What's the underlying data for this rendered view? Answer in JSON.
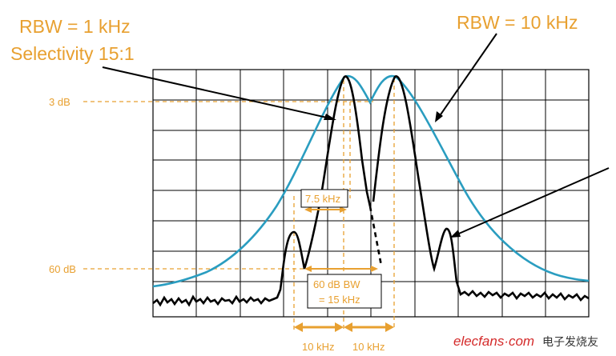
{
  "annotations": {
    "rbw_1k_line1": "RBW = 1 kHz",
    "rbw_1k_line2": "Selectivity 15:1",
    "rbw_10k": "RBW = 10 kHz",
    "level_3db": "3 dB",
    "level_60db": "60 dB",
    "bw_7_5": "7.5 kHz",
    "bw_60db_line1": "60 dB BW",
    "bw_60db_line2": "= 15 kHz",
    "spacing_left": "10 kHz",
    "spacing_right": "10 kHz"
  },
  "watermark": {
    "brand": "elecfans·com",
    "chinese": "电子发烧友"
  },
  "colors": {
    "annotation": "#E8A030",
    "trace_wide": "#2A9DC0",
    "trace_narrow": "#000000",
    "grid": "#000000",
    "watermark_red": "#D42A2A"
  }
}
